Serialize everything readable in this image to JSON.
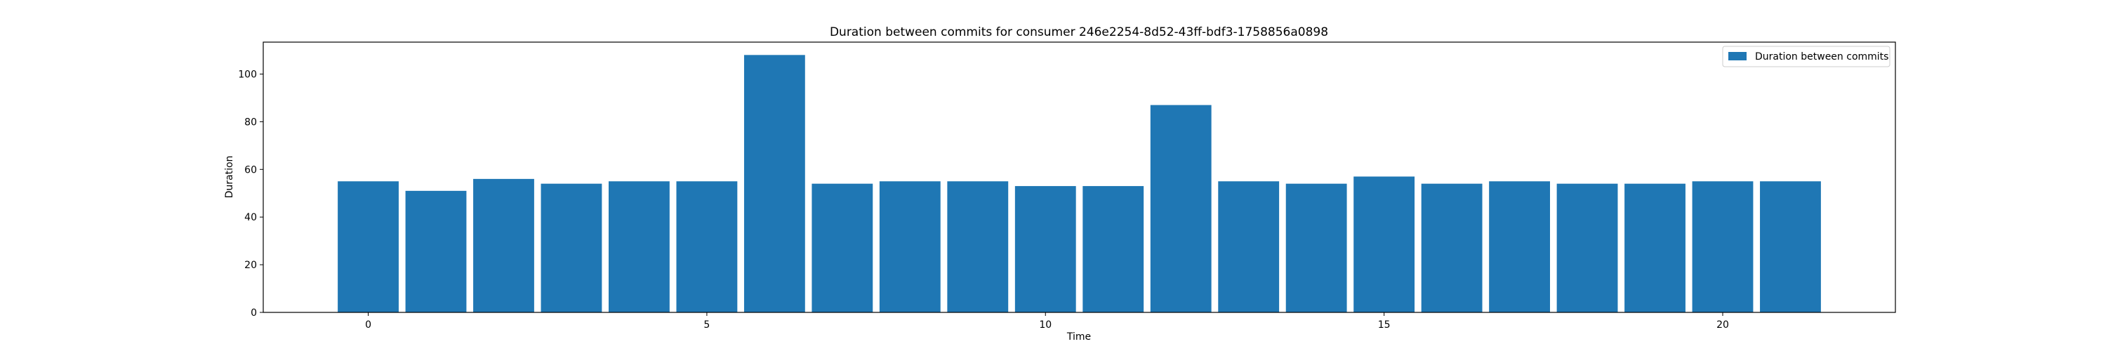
{
  "chart_data": {
    "type": "bar",
    "title": "Duration between commits for consumer 246e2254-8d52-43ff-bdf3-1758856a0898",
    "xlabel": "Time",
    "ylabel": "Duration",
    "x": [
      0,
      1,
      2,
      3,
      4,
      5,
      6,
      7,
      8,
      9,
      10,
      11,
      12,
      13,
      14,
      15,
      16,
      17,
      18,
      19,
      20,
      21
    ],
    "series": [
      {
        "name": "Duration between commits",
        "color": "#1f77b4",
        "values": [
          55,
          51,
          56,
          54,
          55,
          55,
          108,
          54,
          55,
          55,
          53,
          53,
          87,
          55,
          54,
          57,
          54,
          55,
          54,
          54,
          55,
          55
        ]
      }
    ],
    "xlim": [
      -1.55,
      22.55
    ],
    "ylim": [
      0,
      113.4
    ],
    "xticks": [
      0,
      5,
      10,
      15,
      20
    ],
    "yticks": [
      0,
      20,
      40,
      60,
      80,
      100
    ],
    "bar_width": 0.9,
    "grid": false,
    "legend_position": "top-right"
  }
}
